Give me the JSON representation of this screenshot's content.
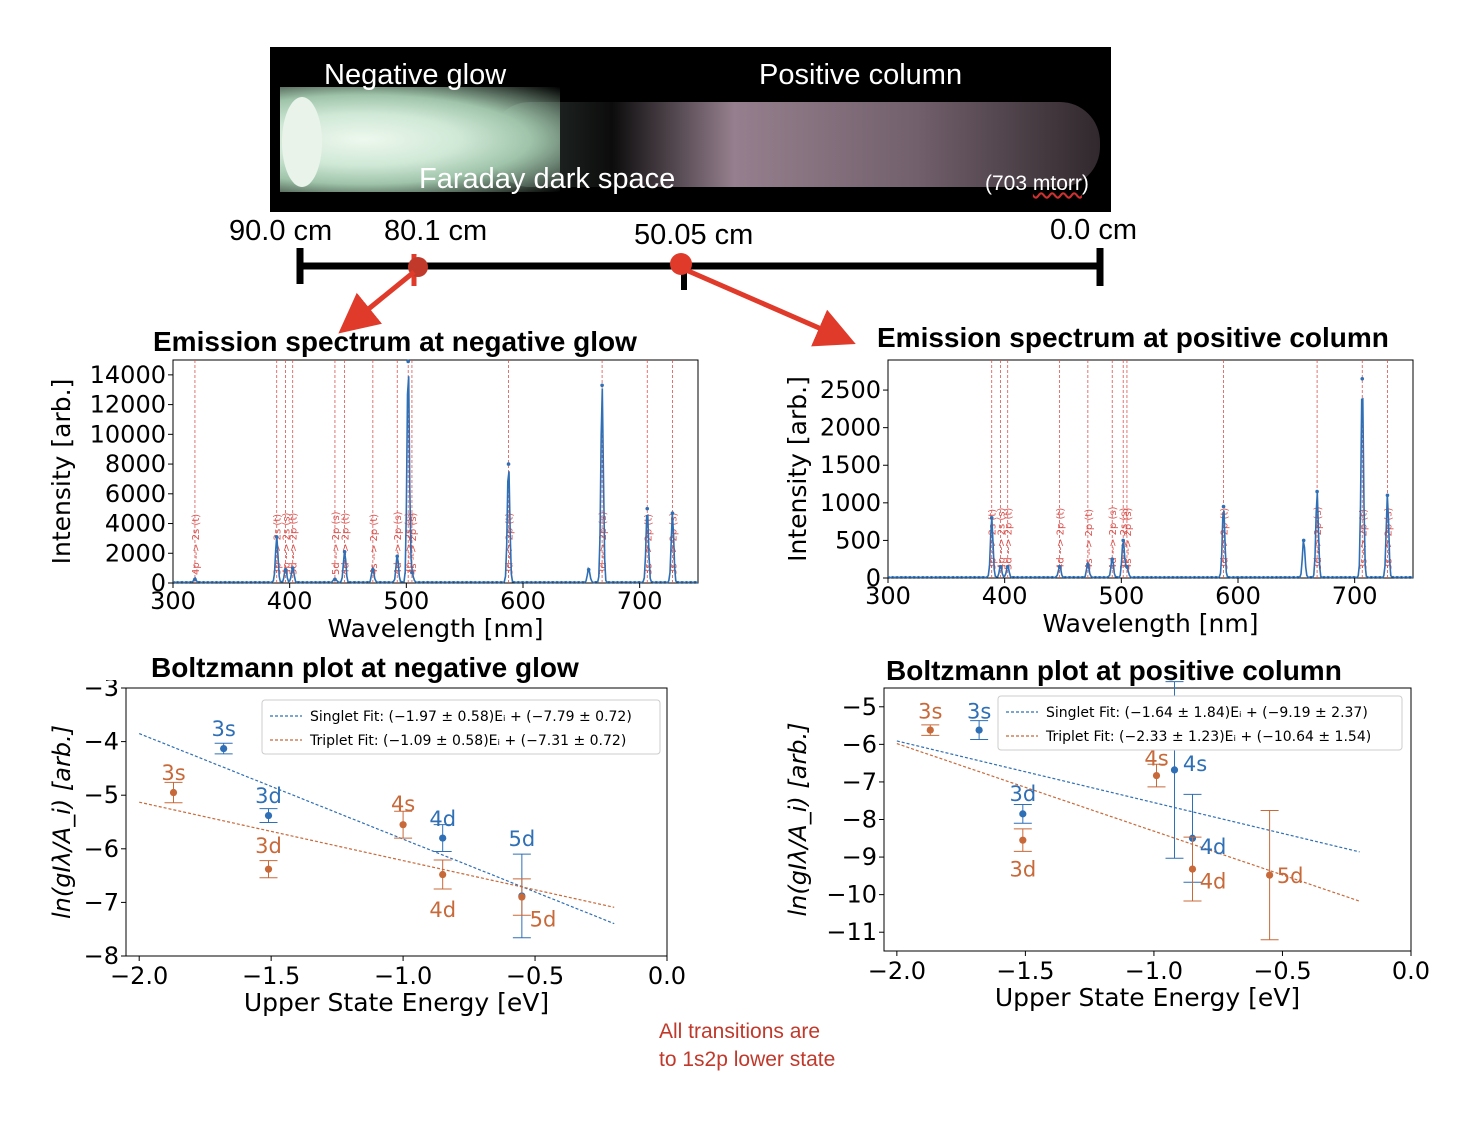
{
  "photo": {
    "negative_glow": "Negative glow",
    "positive_column": "Positive column",
    "faraday": "Faraday dark space",
    "pressure_value": "(703 ",
    "pressure_unit": "mtorr",
    "pressure_close": ")"
  },
  "ruler": {
    "labels": [
      "90.0 cm",
      "80.1 cm",
      "50.05 cm",
      "0.0 cm"
    ]
  },
  "titles": {
    "spec_neg": "Emission spectrum at negative glow",
    "spec_pos": "Emission spectrum at positive column",
    "boltz_neg": "Boltzmann plot at negative glow",
    "boltz_pos": "Boltzmann plot at positive column"
  },
  "note": {
    "line1": "All transitions are",
    "line2": "to 1s2p lower state"
  },
  "colors": {
    "blue": "#2f6fb5",
    "orange": "#c8693a",
    "red": "#e03a2a",
    "note_red": "#c0392b"
  },
  "chart_data": [
    {
      "id": "spec_neg",
      "type": "line",
      "title": "Emission spectrum at negative glow",
      "xlabel": "Wavelength [nm]",
      "ylabel": "Intensity [arb.]",
      "xlim": [
        300,
        750
      ],
      "ylim": [
        0,
        15000
      ],
      "xticks": [
        300,
        400,
        500,
        600,
        700
      ],
      "yticks": [
        0,
        2000,
        4000,
        6000,
        8000,
        10000,
        12000,
        14000
      ],
      "peaks": [
        {
          "x": 318.8,
          "y": 250
        },
        {
          "x": 388.9,
          "y": 3100
        },
        {
          "x": 396.5,
          "y": 900
        },
        {
          "x": 402.6,
          "y": 1000
        },
        {
          "x": 438.8,
          "y": 250
        },
        {
          "x": 447.1,
          "y": 2100
        },
        {
          "x": 471.3,
          "y": 900
        },
        {
          "x": 492.2,
          "y": 1800
        },
        {
          "x": 501.6,
          "y": 14900
        },
        {
          "x": 504.8,
          "y": 700
        },
        {
          "x": 587.6,
          "y": 8000
        },
        {
          "x": 656.3,
          "y": 900
        },
        {
          "x": 667.8,
          "y": 13300
        },
        {
          "x": 706.5,
          "y": 5000
        },
        {
          "x": 728.1,
          "y": 4700
        }
      ],
      "lines": [
        {
          "x": 318.8,
          "label": "4p --> 2s (t)"
        },
        {
          "x": 388.9,
          "label": "3p --> 2s (t)"
        },
        {
          "x": 396.5,
          "label": "4p --> 2s (s)"
        },
        {
          "x": 402.6,
          "label": "5d --> 2p (t)"
        },
        {
          "x": 438.8,
          "label": "5d --> 2p (s)"
        },
        {
          "x": 447.1,
          "label": "4d --> 2p (t)"
        },
        {
          "x": 471.3,
          "label": "4s --> 2p (t)"
        },
        {
          "x": 492.2,
          "label": "4d --> 2p (s)"
        },
        {
          "x": 501.6,
          "label": "3p --> 2s (s)"
        },
        {
          "x": 504.8,
          "label": "4s --> 2p (s)"
        },
        {
          "x": 587.6,
          "label": "3d --> 2p (t)"
        },
        {
          "x": 667.8,
          "label": "3d --> 2p (s)"
        },
        {
          "x": 706.5,
          "label": "3s --> 2p (t)"
        },
        {
          "x": 728.1,
          "label": "3s --> 2p (s)"
        }
      ]
    },
    {
      "id": "spec_pos",
      "type": "line",
      "title": "Emission spectrum at positive column",
      "xlabel": "Wavelength [nm]",
      "ylabel": "Intensity [arb.]",
      "xlim": [
        300,
        750
      ],
      "ylim": [
        0,
        2900
      ],
      "xticks": [
        300,
        400,
        500,
        600,
        700
      ],
      "yticks": [
        0,
        500,
        1000,
        1500,
        2000,
        2500
      ],
      "peaks": [
        {
          "x": 388.9,
          "y": 800
        },
        {
          "x": 396.5,
          "y": 150
        },
        {
          "x": 402.6,
          "y": 150
        },
        {
          "x": 447.1,
          "y": 150
        },
        {
          "x": 471.3,
          "y": 180
        },
        {
          "x": 492.2,
          "y": 250
        },
        {
          "x": 501.6,
          "y": 500
        },
        {
          "x": 504.8,
          "y": 150
        },
        {
          "x": 587.6,
          "y": 950
        },
        {
          "x": 656.3,
          "y": 500
        },
        {
          "x": 667.8,
          "y": 1150
        },
        {
          "x": 706.5,
          "y": 2650
        },
        {
          "x": 728.1,
          "y": 1100
        }
      ],
      "lines": [
        {
          "x": 388.9,
          "label": "3p --> 2s (t)"
        },
        {
          "x": 396.5,
          "label": "4p --> 2s (s)"
        },
        {
          "x": 402.6,
          "label": "5d --> 2p (t)"
        },
        {
          "x": 447.1,
          "label": "4d --> 2p (t)"
        },
        {
          "x": 471.3,
          "label": "4s --> 2p (t)"
        },
        {
          "x": 492.2,
          "label": "4d --> 2p (s)"
        },
        {
          "x": 501.6,
          "label": "3p --> 2s (s)"
        },
        {
          "x": 504.8,
          "label": "4s --> 2p (s)"
        },
        {
          "x": 587.6,
          "label": "3d --> 2p (t)"
        },
        {
          "x": 667.8,
          "label": "3d --> 2p (s)"
        },
        {
          "x": 706.5,
          "label": "3s --> 2p (t)"
        },
        {
          "x": 728.1,
          "label": "3s --> 2p (s)"
        }
      ]
    },
    {
      "id": "boltz_neg",
      "type": "scatter",
      "title": "Boltzmann plot at negative glow",
      "xlabel": "Upper State Energy [eV]",
      "ylabel": "ln(gIλ/A_i) [arb.]",
      "xlim": [
        -2.05,
        0.0
      ],
      "ylim": [
        -8,
        -3
      ],
      "xticks": [
        -2.0,
        -1.5,
        -1.0,
        -0.5,
        0.0
      ],
      "xtick_labels": [
        "−2.0",
        "−1.5",
        "−1.0",
        "−0.5",
        "0.0"
      ],
      "yticks": [
        -8,
        -7,
        -6,
        -5,
        -4,
        -3
      ],
      "ytick_labels": [
        "−8",
        "−7",
        "−6",
        "−5",
        "−4",
        "−3"
      ],
      "legend": [
        {
          "series": "singlet",
          "label": "Singlet Fit: (−1.97 ± 0.58)Eᵢ + (−7.79 ± 0.72)"
        },
        {
          "series": "triplet",
          "label": "Triplet Fit: (−1.09 ± 0.58)Eᵢ + (−7.31 ± 0.72)"
        }
      ],
      "fits": {
        "singlet": {
          "slope": -1.97,
          "intercept": -7.79,
          "x": [
            -2.0,
            -0.2
          ]
        },
        "triplet": {
          "slope": -1.09,
          "intercept": -7.31,
          "x": [
            -2.0,
            -0.2
          ]
        }
      },
      "points": [
        {
          "series": "singlet",
          "label": "3s",
          "x": -1.68,
          "y": -4.13,
          "err": 0.1,
          "lx": -1.68,
          "ly": -3.75
        },
        {
          "series": "singlet",
          "label": "3d",
          "x": -1.51,
          "y": -5.38,
          "err": 0.13,
          "lx": -1.51,
          "ly": -5.0
        },
        {
          "series": "singlet",
          "label": "4d",
          "x": -0.85,
          "y": -5.8,
          "err": 0.25,
          "lx": -0.85,
          "ly": -5.43
        },
        {
          "series": "singlet",
          "label": "5d",
          "x": -0.55,
          "y": -6.88,
          "err": 0.78,
          "lx": -0.55,
          "ly": -5.8
        },
        {
          "series": "triplet",
          "label": "3s",
          "x": -1.87,
          "y": -4.95,
          "err": 0.19,
          "lx": -1.87,
          "ly": -4.57
        },
        {
          "series": "triplet",
          "label": "3d",
          "x": -1.51,
          "y": -6.38,
          "err": 0.16,
          "lx": -1.51,
          "ly": -5.93
        },
        {
          "series": "triplet",
          "label": "4s",
          "x": -1.0,
          "y": -5.55,
          "err": 0.25,
          "lx": -1.0,
          "ly": -5.15
        },
        {
          "series": "triplet",
          "label": "4d",
          "x": -0.85,
          "y": -6.48,
          "err": 0.27,
          "lx": -0.85,
          "ly": -7.12
        },
        {
          "series": "triplet",
          "label": "5d",
          "x": -0.55,
          "y": -6.9,
          "err": 0.34,
          "lx": -0.47,
          "ly": -7.3
        }
      ]
    },
    {
      "id": "boltz_pos",
      "type": "scatter",
      "title": "Boltzmann plot at positive column",
      "xlabel": "Upper State Energy [eV]",
      "ylabel": "ln(gIλ/A_i) [arb.]",
      "xlim": [
        -2.05,
        0.0
      ],
      "ylim": [
        -11.5,
        -4.5
      ],
      "xticks": [
        -2.0,
        -1.5,
        -1.0,
        -0.5,
        0.0
      ],
      "xtick_labels": [
        "−2.0",
        "−1.5",
        "−1.0",
        "−0.5",
        "0.0"
      ],
      "yticks": [
        -11,
        -10,
        -9,
        -8,
        -7,
        -6,
        -5
      ],
      "ytick_labels": [
        "−11",
        "−10",
        "−9",
        "−8",
        "−7",
        "−6",
        "−5"
      ],
      "legend": [
        {
          "series": "singlet",
          "label": "Singlet Fit: (−1.64 ± 1.84)Eᵢ + (−9.19 ± 2.37)"
        },
        {
          "series": "triplet",
          "label": "Triplet Fit: (−2.33 ± 1.23)Eᵢ + (−10.64 ± 1.54)"
        }
      ],
      "fits": {
        "singlet": {
          "slope": -1.64,
          "intercept": -9.19,
          "x": [
            -2.0,
            -0.2
          ]
        },
        "triplet": {
          "slope": -2.33,
          "intercept": -10.64,
          "x": [
            -2.0,
            -0.2
          ]
        }
      },
      "points": [
        {
          "series": "singlet",
          "label": "3s",
          "x": -1.68,
          "y": -5.62,
          "err": 0.25,
          "lx": -1.68,
          "ly": -5.1
        },
        {
          "series": "singlet",
          "label": "3d",
          "x": -1.51,
          "y": -7.85,
          "err": 0.25,
          "lx": -1.51,
          "ly": -7.3
        },
        {
          "series": "singlet",
          "label": "4s",
          "x": -0.92,
          "y": -6.68,
          "err": 2.35,
          "lx": -0.84,
          "ly": -6.5
        },
        {
          "series": "singlet",
          "label": "4d",
          "x": -0.85,
          "y": -8.5,
          "err": 1.17,
          "lx": -0.77,
          "ly": -8.7
        },
        {
          "series": "triplet",
          "label": "3s",
          "x": -1.87,
          "y": -5.62,
          "err": 0.14,
          "lx": -1.87,
          "ly": -5.1
        },
        {
          "series": "triplet",
          "label": "3d",
          "x": -1.51,
          "y": -8.55,
          "err": 0.3,
          "lx": -1.51,
          "ly": -9.3
        },
        {
          "series": "triplet",
          "label": "4s",
          "x": -0.99,
          "y": -6.83,
          "err": 0.3,
          "lx": -0.99,
          "ly": -6.35
        },
        {
          "series": "triplet",
          "label": "4d",
          "x": -0.85,
          "y": -9.32,
          "err": 0.85,
          "lx": -0.77,
          "ly": -9.62
        },
        {
          "series": "triplet",
          "label": "5d",
          "x": -0.55,
          "y": -9.48,
          "err": 1.72,
          "lx": -0.47,
          "ly": -9.48
        }
      ]
    }
  ]
}
